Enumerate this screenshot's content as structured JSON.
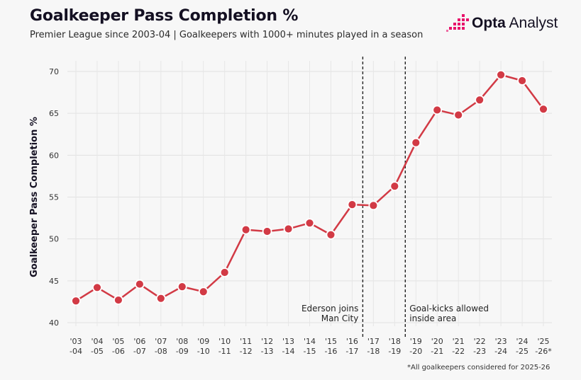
{
  "header": {
    "title": "Goalkeeper Pass Completion %",
    "subtitle": "Premier League since 2003-04 | Goalkeepers with 1000+ minutes played in a season"
  },
  "brand": {
    "name_bold": "Opta",
    "name_regular": "Analyst",
    "logo_icon": "opta-dots-icon",
    "accent_color": "#e8116a"
  },
  "footnote": "*All goalkeepers considered for 2025-26",
  "chart_data": {
    "type": "line",
    "title": "Goalkeeper Pass Completion %",
    "subtitle": "Premier League since 2003-04 | Goalkeepers with 1000+ minutes played in a season",
    "ylabel": "Goalkeeper Pass Completion %",
    "xlabel": "",
    "ylim": [
      40,
      70
    ],
    "y_ticks": [
      40,
      45,
      50,
      55,
      60,
      65,
      70
    ],
    "grid": true,
    "line_color": "#d23a45",
    "categories": [
      [
        "'03",
        "-04"
      ],
      [
        "'04",
        "-05"
      ],
      [
        "'05",
        "-06"
      ],
      [
        "'06",
        "-07"
      ],
      [
        "'07",
        "-08"
      ],
      [
        "'08",
        "-09"
      ],
      [
        "'09",
        "-10"
      ],
      [
        "'10",
        "-11"
      ],
      [
        "'11",
        "-12"
      ],
      [
        "'12",
        "-13"
      ],
      [
        "'13",
        "-14"
      ],
      [
        "'14",
        "-15"
      ],
      [
        "'15",
        "-16"
      ],
      [
        "'16",
        "-17"
      ],
      [
        "'17",
        "-18"
      ],
      [
        "'18",
        "-19"
      ],
      [
        "'19",
        "-20"
      ],
      [
        "'20",
        "-21"
      ],
      [
        "'21",
        "-22"
      ],
      [
        "'22",
        "-23"
      ],
      [
        "'23",
        "-24"
      ],
      [
        "'24",
        "-25"
      ],
      [
        "'25",
        "-26*"
      ]
    ],
    "values": [
      42.6,
      44.2,
      42.7,
      44.6,
      42.9,
      44.3,
      43.7,
      46.0,
      51.1,
      50.9,
      51.2,
      51.9,
      50.5,
      54.1,
      54.0,
      56.3,
      61.5,
      65.4,
      64.8,
      66.6,
      69.6,
      68.9,
      65.5
    ],
    "annotations": [
      {
        "between": [
          13,
          14
        ],
        "text": [
          "Ederson joins",
          "Man City"
        ],
        "align": "right"
      },
      {
        "between": [
          15,
          16
        ],
        "text": [
          "Goal-kicks allowed",
          "inside area"
        ],
        "align": "left"
      }
    ]
  }
}
